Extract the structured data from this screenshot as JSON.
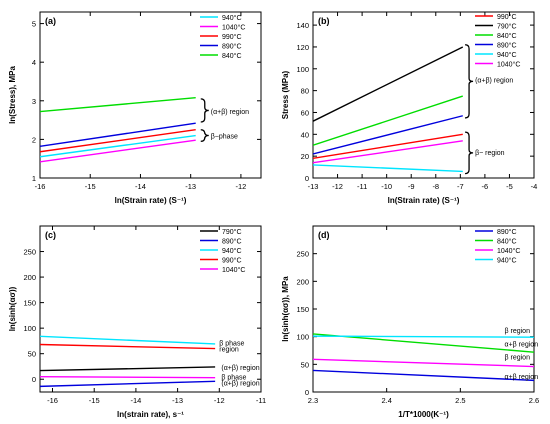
{
  "chart_data": [
    {
      "panel_label": "(a)",
      "type": "line",
      "xlabel": "ln(Strain rate) (S⁻¹)",
      "ylabel": "ln(Stress), MPa",
      "xlim": [
        -16,
        -11.6
      ],
      "ylim": [
        1,
        5.3
      ],
      "xticks": [
        -16,
        -15,
        -14,
        -13,
        -12
      ],
      "yticks": [
        1,
        2,
        3,
        4,
        5
      ],
      "legend_position": "top-right",
      "series": [
        {
          "name": "940°C",
          "color": "#00e5ff",
          "x": [
            -16,
            -12.9
          ],
          "y": [
            1.55,
            2.1
          ]
        },
        {
          "name": "1040°C",
          "color": "#ff00ff",
          "x": [
            -16,
            -12.9
          ],
          "y": [
            1.42,
            1.98
          ]
        },
        {
          "name": "990°C",
          "color": "#ff0000",
          "x": [
            -16,
            -12.9
          ],
          "y": [
            1.68,
            2.25
          ]
        },
        {
          "name": "890°C",
          "color": "#0000dd",
          "x": [
            -16,
            -12.9
          ],
          "y": [
            1.82,
            2.42
          ]
        },
        {
          "name": "840°C",
          "color": "#00dd00",
          "x": [
            -16,
            -12.9
          ],
          "y": [
            2.72,
            3.08
          ]
        }
      ],
      "annotations": [
        {
          "text": "(α+β) region",
          "x": -12.6,
          "y": 2.73,
          "brace_y": [
            2.45,
            3.05
          ]
        },
        {
          "text": "β−phase",
          "x": -12.6,
          "y": 2.1,
          "brace_y": [
            1.95,
            2.25
          ]
        }
      ]
    },
    {
      "panel_label": "(b)",
      "type": "line",
      "xlabel": "ln(Strain rate) (S⁻¹)",
      "ylabel": "Stress (MPa)",
      "xlim": [
        -13,
        -4
      ],
      "ylim": [
        0,
        152
      ],
      "xticks": [
        -13,
        -12,
        -11,
        -10,
        -9,
        -8,
        -7,
        -6,
        -5,
        -4
      ],
      "yticks": [
        0,
        20,
        40,
        60,
        80,
        100,
        120,
        140
      ],
      "legend_position": "top-right",
      "series": [
        {
          "name": "990°C",
          "color": "#ff0000",
          "x": [
            -13,
            -6.9
          ],
          "y": [
            18,
            40
          ]
        },
        {
          "name": "790°C",
          "color": "#000000",
          "x": [
            -13,
            -6.9
          ],
          "y": [
            52,
            120
          ]
        },
        {
          "name": "840°C",
          "color": "#00dd00",
          "x": [
            -13,
            -6.9
          ],
          "y": [
            30,
            75
          ]
        },
        {
          "name": "890°C",
          "color": "#0000dd",
          "x": [
            -13,
            -6.9
          ],
          "y": [
            22,
            57
          ]
        },
        {
          "name": "940°C",
          "color": "#00e5ff",
          "x": [
            -13,
            -6.9
          ],
          "y": [
            12,
            6
          ]
        },
        {
          "name": "1040°C",
          "color": "#ff00ff",
          "x": [
            -13,
            -6.9
          ],
          "y": [
            14,
            34
          ]
        }
      ],
      "annotations": [
        {
          "text": "(α+β) region",
          "x": -6.4,
          "y": 90,
          "brace_y": [
            55,
            122
          ]
        },
        {
          "text": "β− region",
          "x": -6.4,
          "y": 24,
          "brace_y": [
            4,
            42
          ]
        }
      ]
    },
    {
      "panel_label": "(c)",
      "type": "line",
      "xlabel": "ln(strain rate), s⁻¹",
      "ylabel": "ln(sinh(ασ))",
      "xlim": [
        -16.3,
        -11
      ],
      "ylim": [
        -25,
        300
      ],
      "xticks": [
        -16,
        -15,
        -14,
        -13,
        -12,
        -11
      ],
      "yticks": [
        0,
        50,
        100,
        150,
        200,
        250
      ],
      "legend_position": "top-right",
      "series": [
        {
          "name": "790°C",
          "color": "#000000",
          "x": [
            -16.3,
            -12.1
          ],
          "y": [
            17,
            24
          ]
        },
        {
          "name": "890°C",
          "color": "#0000dd",
          "x": [
            -16.3,
            -12.1
          ],
          "y": [
            -14,
            -4
          ]
        },
        {
          "name": "940°C",
          "color": "#00e5ff",
          "x": [
            -16.3,
            -12.1
          ],
          "y": [
            84,
            69
          ]
        },
        {
          "name": "990°C",
          "color": "#ff0000",
          "x": [
            -16.3,
            -12.1
          ],
          "y": [
            68,
            60
          ]
        },
        {
          "name": "1040°C",
          "color": "#ff00ff",
          "x": [
            -16.3,
            -12.1
          ],
          "y": [
            5,
            3
          ]
        }
      ],
      "annotations": [
        {
          "text": "β phase",
          "x": -12,
          "y": 72
        },
        {
          "text": "region",
          "x": -12,
          "y": 60
        },
        {
          "text": "(α+β) region",
          "x": -11.95,
          "y": 24
        },
        {
          "text": "β phase",
          "x": -11.95,
          "y": 5
        },
        {
          "text": "(α+β) region",
          "x": -11.95,
          "y": -6
        }
      ]
    },
    {
      "panel_label": "(d)",
      "type": "line",
      "xlabel": "1/T*1000(K⁻¹)",
      "ylabel": "ln(sinh(ασ)), MPa",
      "xlim": [
        2.3,
        2.6
      ],
      "ylim": [
        0,
        300
      ],
      "xticks": [
        2.3,
        2.4,
        2.5,
        2.6
      ],
      "yticks": [
        0,
        50,
        100,
        150,
        200,
        250
      ],
      "legend_position": "top-right",
      "series": [
        {
          "name": "890°C",
          "color": "#0000dd",
          "x": [
            2.3,
            2.6
          ],
          "y": [
            39,
            21
          ]
        },
        {
          "name": "840°C",
          "color": "#00dd00",
          "x": [
            2.3,
            2.6
          ],
          "y": [
            105,
            72
          ]
        },
        {
          "name": "1040°C",
          "color": "#ff00ff",
          "x": [
            2.3,
            2.6
          ],
          "y": [
            59,
            46
          ]
        },
        {
          "name": "940°C",
          "color": "#00e5ff",
          "x": [
            2.3,
            2.6
          ],
          "y": [
            101,
            99
          ]
        }
      ],
      "annotations": [
        {
          "text": "β region",
          "x": 2.56,
          "y": 112
        },
        {
          "text": "α+β region",
          "x": 2.56,
          "y": 88
        },
        {
          "text": "β region",
          "x": 2.56,
          "y": 64
        },
        {
          "text": "α+β region",
          "x": 2.56,
          "y": 29
        }
      ]
    }
  ]
}
